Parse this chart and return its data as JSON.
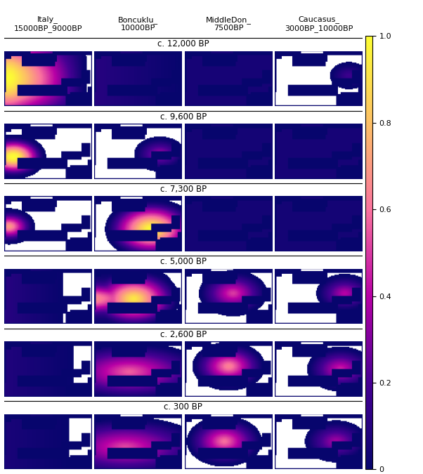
{
  "col_labels": [
    "Italy_\n15000BP_9000BP",
    "Boncuklu_\n10000BP",
    "MiddleDon_\n7500BP",
    "Caucasus_\n3000BP_10000BP"
  ],
  "row_labels": [
    "c. 12,000 BP",
    "c. 9,600 BP",
    "c. 7,300 BP",
    "c. 5,000 BP",
    "c. 2,600 BP",
    "c. 300 BP"
  ],
  "colorbar_ticks": [
    0,
    0.2,
    0.4,
    0.6,
    0.8,
    1.0
  ],
  "colorbar_label": "",
  "cmap": "plasma",
  "bg_color": "#ffffff",
  "map_bg": "#08006e",
  "land_color": "#ffffff",
  "n_rows": 6,
  "n_cols": 4,
  "figsize": [
    6.02,
    6.75
  ],
  "dpi": 100
}
